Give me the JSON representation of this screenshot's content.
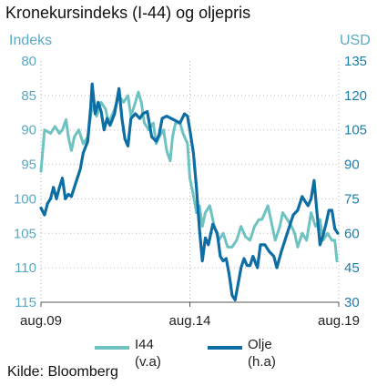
{
  "chart_data": {
    "type": "line",
    "title": "Kronekursindeks (I-44) og oljepris",
    "left_axis": {
      "unit_label": "Indeks",
      "ticks": [
        80,
        85,
        90,
        95,
        100,
        105,
        110,
        115
      ],
      "range": [
        80,
        115
      ],
      "inverted": true,
      "tick_color": "#5aa9c4"
    },
    "right_axis": {
      "unit_label": "USD",
      "ticks": [
        135,
        120,
        105,
        90,
        75,
        60,
        45,
        30
      ],
      "range": [
        30,
        135
      ],
      "tick_color": "#1b7da6"
    },
    "x_axis": {
      "tick_labels": [
        "aug.09",
        "aug.14",
        "aug.19"
      ],
      "ticks": [
        2009.58,
        2014.58,
        2019.58
      ],
      "range": [
        2009.58,
        2019.58
      ]
    },
    "grid": "vertical dotted at ticks, horizontal dotted at left-axis ticks",
    "legend_position": "bottom",
    "series": [
      {
        "name": "I44",
        "sublabel": "(v.a)",
        "axis": "left",
        "color": "#6ec3c1",
        "points": [
          [
            2009.58,
            96
          ],
          [
            2009.7,
            90
          ],
          [
            2009.9,
            90.5
          ],
          [
            2010.05,
            89.5
          ],
          [
            2010.2,
            90.5
          ],
          [
            2010.3,
            90
          ],
          [
            2010.42,
            88.5
          ],
          [
            2010.5,
            91
          ],
          [
            2010.6,
            93
          ],
          [
            2010.7,
            91
          ],
          [
            2010.85,
            90
          ],
          [
            2011.0,
            92
          ],
          [
            2011.15,
            91
          ],
          [
            2011.3,
            86.5
          ],
          [
            2011.45,
            88
          ],
          [
            2011.6,
            86
          ],
          [
            2011.75,
            87
          ],
          [
            2011.85,
            89
          ],
          [
            2011.95,
            88
          ],
          [
            2012.05,
            87
          ],
          [
            2012.2,
            85
          ],
          [
            2012.35,
            86
          ],
          [
            2012.5,
            85
          ],
          [
            2012.6,
            88
          ],
          [
            2012.75,
            86
          ],
          [
            2012.85,
            84.5
          ],
          [
            2012.95,
            86
          ],
          [
            2013.05,
            89
          ],
          [
            2013.2,
            90
          ],
          [
            2013.35,
            89
          ],
          [
            2013.45,
            92
          ],
          [
            2013.55,
            91
          ],
          [
            2013.7,
            90
          ],
          [
            2013.8,
            93
          ],
          [
            2013.92,
            94.5
          ],
          [
            2014.0,
            91
          ],
          [
            2014.1,
            89
          ],
          [
            2014.25,
            89
          ],
          [
            2014.35,
            90.5
          ],
          [
            2014.5,
            92
          ],
          [
            2014.58,
            97
          ],
          [
            2014.7,
            99.5
          ],
          [
            2014.8,
            102
          ],
          [
            2014.9,
            101
          ],
          [
            2015.0,
            104
          ],
          [
            2015.1,
            102
          ],
          [
            2015.25,
            101
          ],
          [
            2015.4,
            104
          ],
          [
            2015.55,
            106
          ],
          [
            2015.7,
            105
          ],
          [
            2015.85,
            107
          ],
          [
            2016.0,
            107
          ],
          [
            2016.15,
            106
          ],
          [
            2016.3,
            104
          ],
          [
            2016.45,
            105.5
          ],
          [
            2016.6,
            106
          ],
          [
            2016.75,
            104
          ],
          [
            2016.9,
            103
          ],
          [
            2017.0,
            103
          ],
          [
            2017.1,
            102
          ],
          [
            2017.2,
            101
          ],
          [
            2017.3,
            103
          ],
          [
            2017.45,
            106
          ],
          [
            2017.6,
            104
          ],
          [
            2017.7,
            102
          ],
          [
            2017.85,
            103
          ],
          [
            2018.0,
            104
          ],
          [
            2018.1,
            105
          ],
          [
            2018.2,
            107
          ],
          [
            2018.35,
            105
          ],
          [
            2018.5,
            106
          ],
          [
            2018.65,
            102
          ],
          [
            2018.8,
            104
          ],
          [
            2018.95,
            103
          ],
          [
            2019.05,
            106
          ],
          [
            2019.2,
            105
          ],
          [
            2019.35,
            106
          ],
          [
            2019.45,
            106
          ],
          [
            2019.52,
            109
          ]
        ]
      },
      {
        "name": "Olje",
        "sublabel": "(h.a)",
        "axis": "right",
        "color": "#0e6ea3",
        "points": [
          [
            2009.58,
            71
          ],
          [
            2009.7,
            68
          ],
          [
            2009.8,
            73
          ],
          [
            2009.9,
            75
          ],
          [
            2010.0,
            80
          ],
          [
            2010.1,
            75
          ],
          [
            2010.2,
            80
          ],
          [
            2010.3,
            84
          ],
          [
            2010.4,
            75
          ],
          [
            2010.5,
            77
          ],
          [
            2010.6,
            76
          ],
          [
            2010.7,
            80
          ],
          [
            2010.8,
            84
          ],
          [
            2010.9,
            88
          ],
          [
            2011.0,
            95
          ],
          [
            2011.15,
            100
          ],
          [
            2011.25,
            115
          ],
          [
            2011.3,
            125
          ],
          [
            2011.4,
            112
          ],
          [
            2011.5,
            117
          ],
          [
            2011.6,
            113
          ],
          [
            2011.7,
            105
          ],
          [
            2011.8,
            110
          ],
          [
            2011.9,
            107
          ],
          [
            2012.05,
            112
          ],
          [
            2012.2,
            123
          ],
          [
            2012.3,
            110
          ],
          [
            2012.4,
            101
          ],
          [
            2012.5,
            98
          ],
          [
            2012.6,
            110
          ],
          [
            2012.75,
            112
          ],
          [
            2012.9,
            110
          ],
          [
            2013.0,
            112
          ],
          [
            2013.15,
            113
          ],
          [
            2013.3,
            102
          ],
          [
            2013.45,
            100
          ],
          [
            2013.55,
            103
          ],
          [
            2013.65,
            110
          ],
          [
            2013.8,
            111
          ],
          [
            2013.95,
            110
          ],
          [
            2014.1,
            109
          ],
          [
            2014.25,
            108
          ],
          [
            2014.4,
            112
          ],
          [
            2014.5,
            111
          ],
          [
            2014.58,
            105
          ],
          [
            2014.7,
            95
          ],
          [
            2014.8,
            80
          ],
          [
            2014.9,
            62
          ],
          [
            2015.0,
            48
          ],
          [
            2015.1,
            58
          ],
          [
            2015.2,
            55
          ],
          [
            2015.35,
            64
          ],
          [
            2015.5,
            60
          ],
          [
            2015.6,
            50
          ],
          [
            2015.7,
            48
          ],
          [
            2015.8,
            49
          ],
          [
            2015.9,
            42
          ],
          [
            2016.0,
            33
          ],
          [
            2016.1,
            31
          ],
          [
            2016.2,
            38
          ],
          [
            2016.3,
            45
          ],
          [
            2016.4,
            49
          ],
          [
            2016.5,
            46
          ],
          [
            2016.6,
            46
          ],
          [
            2016.7,
            50
          ],
          [
            2016.85,
            45
          ],
          [
            2016.95,
            55
          ],
          [
            2017.1,
            55
          ],
          [
            2017.25,
            52
          ],
          [
            2017.4,
            50
          ],
          [
            2017.5,
            45
          ],
          [
            2017.65,
            52
          ],
          [
            2017.8,
            58
          ],
          [
            2017.95,
            64
          ],
          [
            2018.05,
            68
          ],
          [
            2018.2,
            70
          ],
          [
            2018.35,
            76
          ],
          [
            2018.45,
            74
          ],
          [
            2018.55,
            72
          ],
          [
            2018.65,
            75
          ],
          [
            2018.75,
            83
          ],
          [
            2018.85,
            69
          ],
          [
            2018.95,
            55
          ],
          [
            2019.05,
            59
          ],
          [
            2019.15,
            64
          ],
          [
            2019.25,
            70
          ],
          [
            2019.35,
            70
          ],
          [
            2019.45,
            62
          ],
          [
            2019.55,
            60
          ]
        ]
      }
    ]
  },
  "source": "Kilde: Bloomberg"
}
